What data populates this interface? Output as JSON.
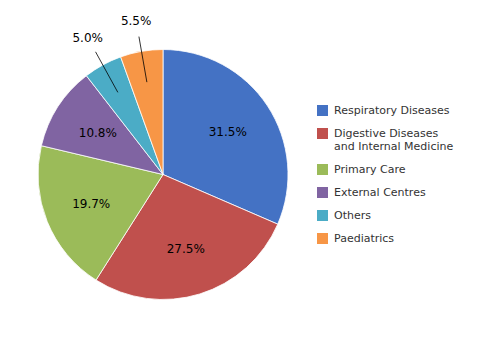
{
  "chart_data": {
    "type": "pie",
    "categories": [
      "Respiratory Diseases",
      "Digestive Diseases\nand Internal Medicine",
      "Primary Care",
      "External Centres",
      "Others",
      "Paediatrics"
    ],
    "values": [
      31.5,
      27.5,
      19.7,
      10.8,
      5.0,
      5.5
    ],
    "value_labels": [
      "31.5%",
      "27.5%",
      "19.7%",
      "10.8%",
      "5.0%",
      "5.5%"
    ],
    "colors": [
      "#4472C4",
      "#C0504D",
      "#9BBB59",
      "#8064A2",
      "#4BACC6",
      "#F79646"
    ],
    "data_labels": true,
    "legend": "right"
  }
}
